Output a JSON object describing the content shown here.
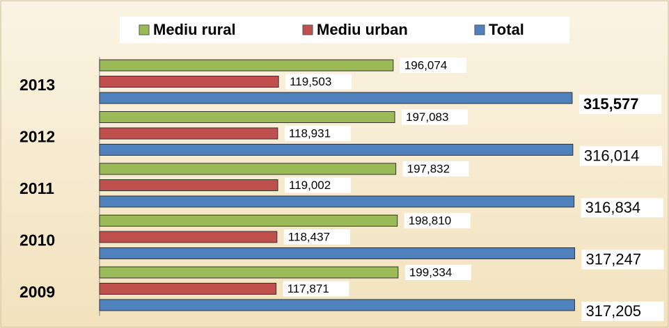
{
  "chart_data": {
    "type": "bar",
    "orientation": "horizontal",
    "categories": [
      "2013",
      "2012",
      "2011",
      "2010",
      "2009"
    ],
    "series": [
      {
        "name": "Mediu rural",
        "color": "#9bbb59",
        "values": [
          196074,
          197083,
          197832,
          198810,
          199334
        ],
        "value_labels": [
          "196,074",
          "197,083",
          "197,832",
          "198,810",
          "199,334"
        ]
      },
      {
        "name": "Mediu urban",
        "color": "#c0504d",
        "values": [
          119503,
          118931,
          119002,
          118437,
          117871
        ],
        "value_labels": [
          "119,503",
          "118,931",
          "119,002",
          "118,437",
          "117,871"
        ]
      },
      {
        "name": "Total",
        "color": "#4f81bd",
        "values": [
          315577,
          316014,
          316834,
          317247,
          317205
        ],
        "value_labels": [
          "315,577",
          "316,014",
          "316,834",
          "317,247",
          "317,205"
        ]
      }
    ],
    "xlim": [
      0,
      350000
    ],
    "legend": "top"
  }
}
